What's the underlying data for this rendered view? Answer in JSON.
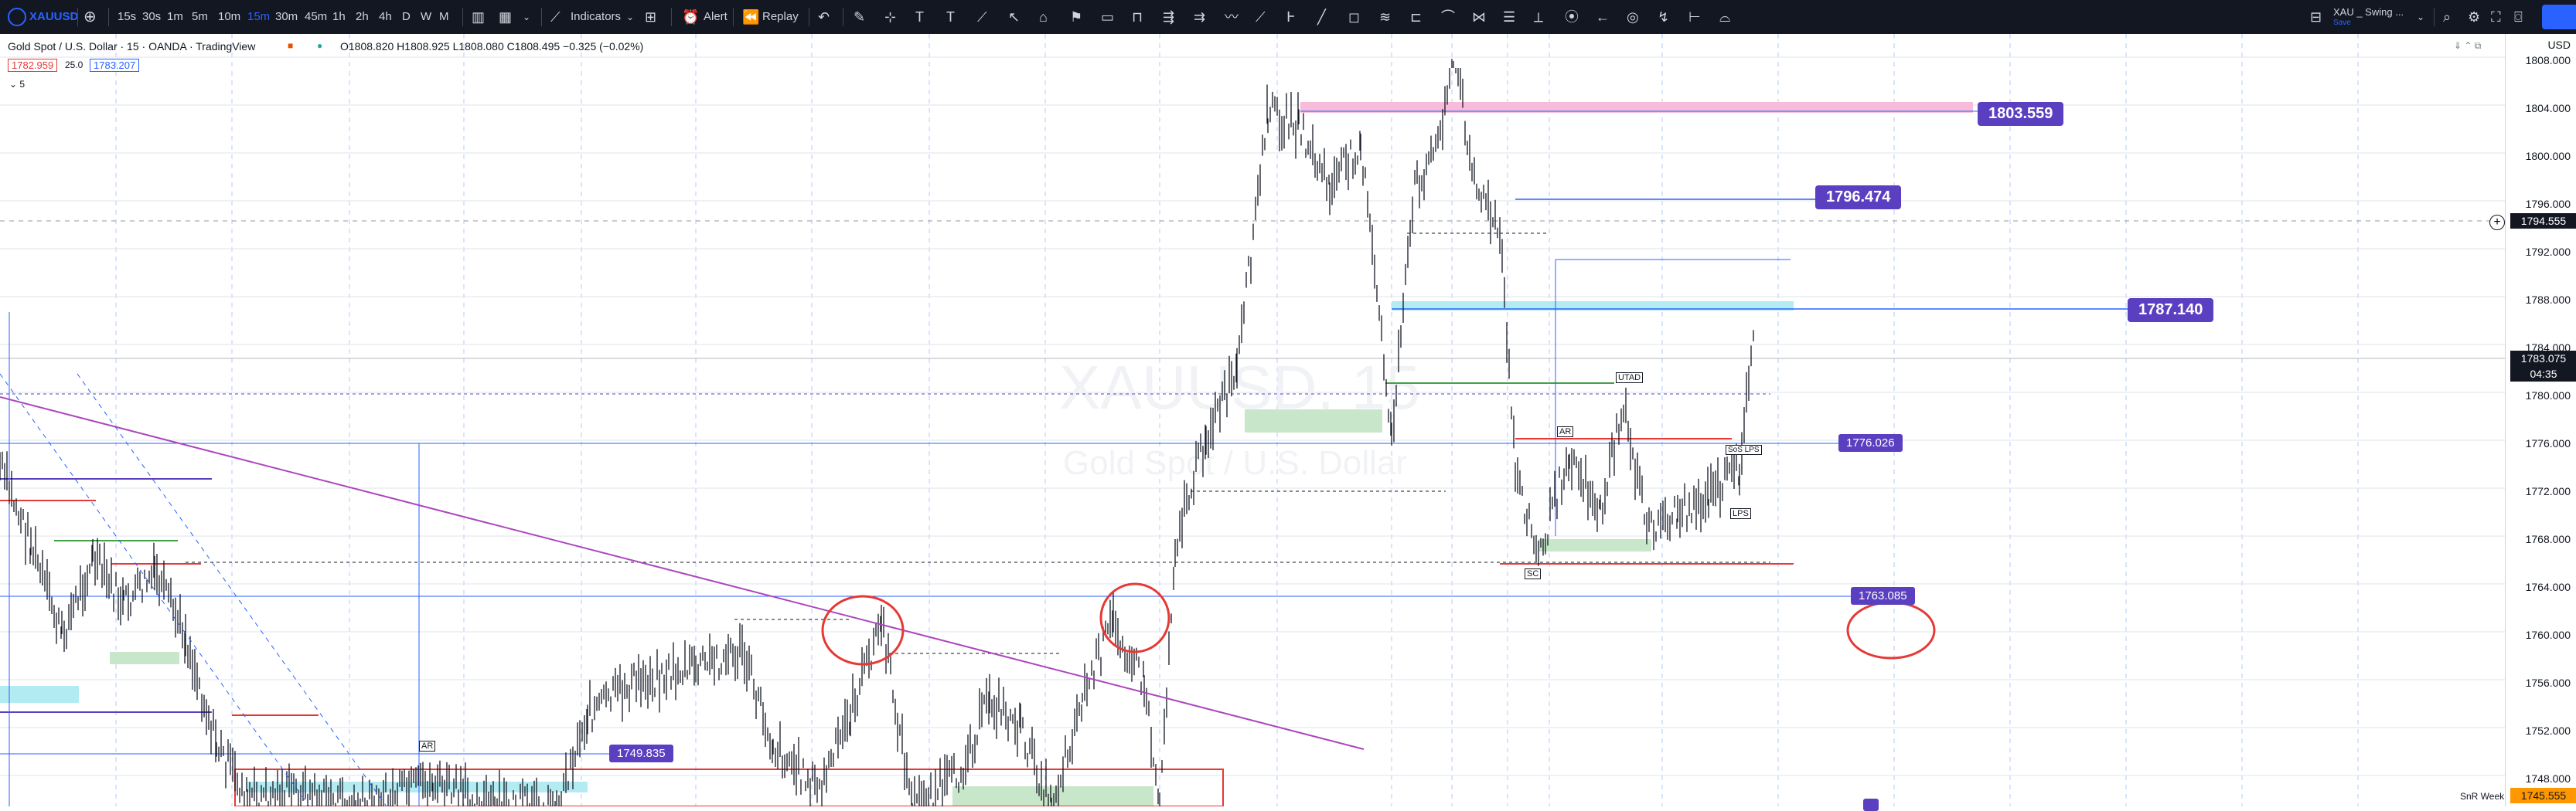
{
  "toolbar": {
    "symbol": "XAUUSD",
    "intervals": [
      "15s",
      "30s",
      "1m",
      "5m",
      "10m",
      "15m",
      "30m",
      "45m",
      "1h",
      "2h",
      "4h",
      "D",
      "W",
      "M"
    ],
    "active_interval": "15m",
    "indicators_label": "Indicators",
    "alert_label": "Alert",
    "replay_label": "Replay",
    "layout_name": "XAU _ Swing ...",
    "layout_sub": "Save"
  },
  "legend": {
    "title": "Gold Spot / U.S. Dollar · 15 · OANDA · TradingView",
    "ohlc": "O1808.820  H1808.925  L1808.080  C1808.495  −0.325 (−0.02%)",
    "bid": "1782.959",
    "spread": "25.0",
    "ask": "1783.207",
    "count": "5"
  },
  "watermark": {
    "symbol": "XAUUSD, 15",
    "name": "Gold Spot / U.S. Dollar"
  },
  "price_axis": {
    "currency": "USD",
    "ticks": [
      "1808.000",
      "1804.000",
      "1800.000",
      "1796.000",
      "1792.000",
      "1788.000",
      "1784.000",
      "1780.000",
      "1776.000",
      "1772.000",
      "1768.000",
      "1764.000",
      "1760.000",
      "1756.000",
      "1752.000",
      "1748.000"
    ],
    "crosshair_price": "1794.555",
    "last_price": "1783.075",
    "countdown": "04:35",
    "bottom_price": "1745.555",
    "bottom_label": "SnR Week"
  },
  "levels": {
    "l1803": "1803.559",
    "l1796": "1796.474",
    "l1787": "1787.140",
    "l1776": "1776.026",
    "l1763": "1763.085",
    "l1749": "1749.835"
  },
  "annotations": {
    "utad": "UTAD",
    "ar_top": "AR",
    "ar_left": "AR",
    "sc": "SC",
    "lps": "LPS",
    "sos": "SoS LPS"
  },
  "colors": {
    "accent": "#2962ff",
    "badge": "#5a3fc0",
    "resistance_zone": "#f8bbd9",
    "support_zone": "#c8e6c9",
    "pullback_zone": "#b2ebf2",
    "trendline": "#ab47bc",
    "level_line": "#2962ff",
    "red_marker": "#e53935",
    "last_price_tag": "#131722",
    "bottom_tag": "#ff9800"
  }
}
